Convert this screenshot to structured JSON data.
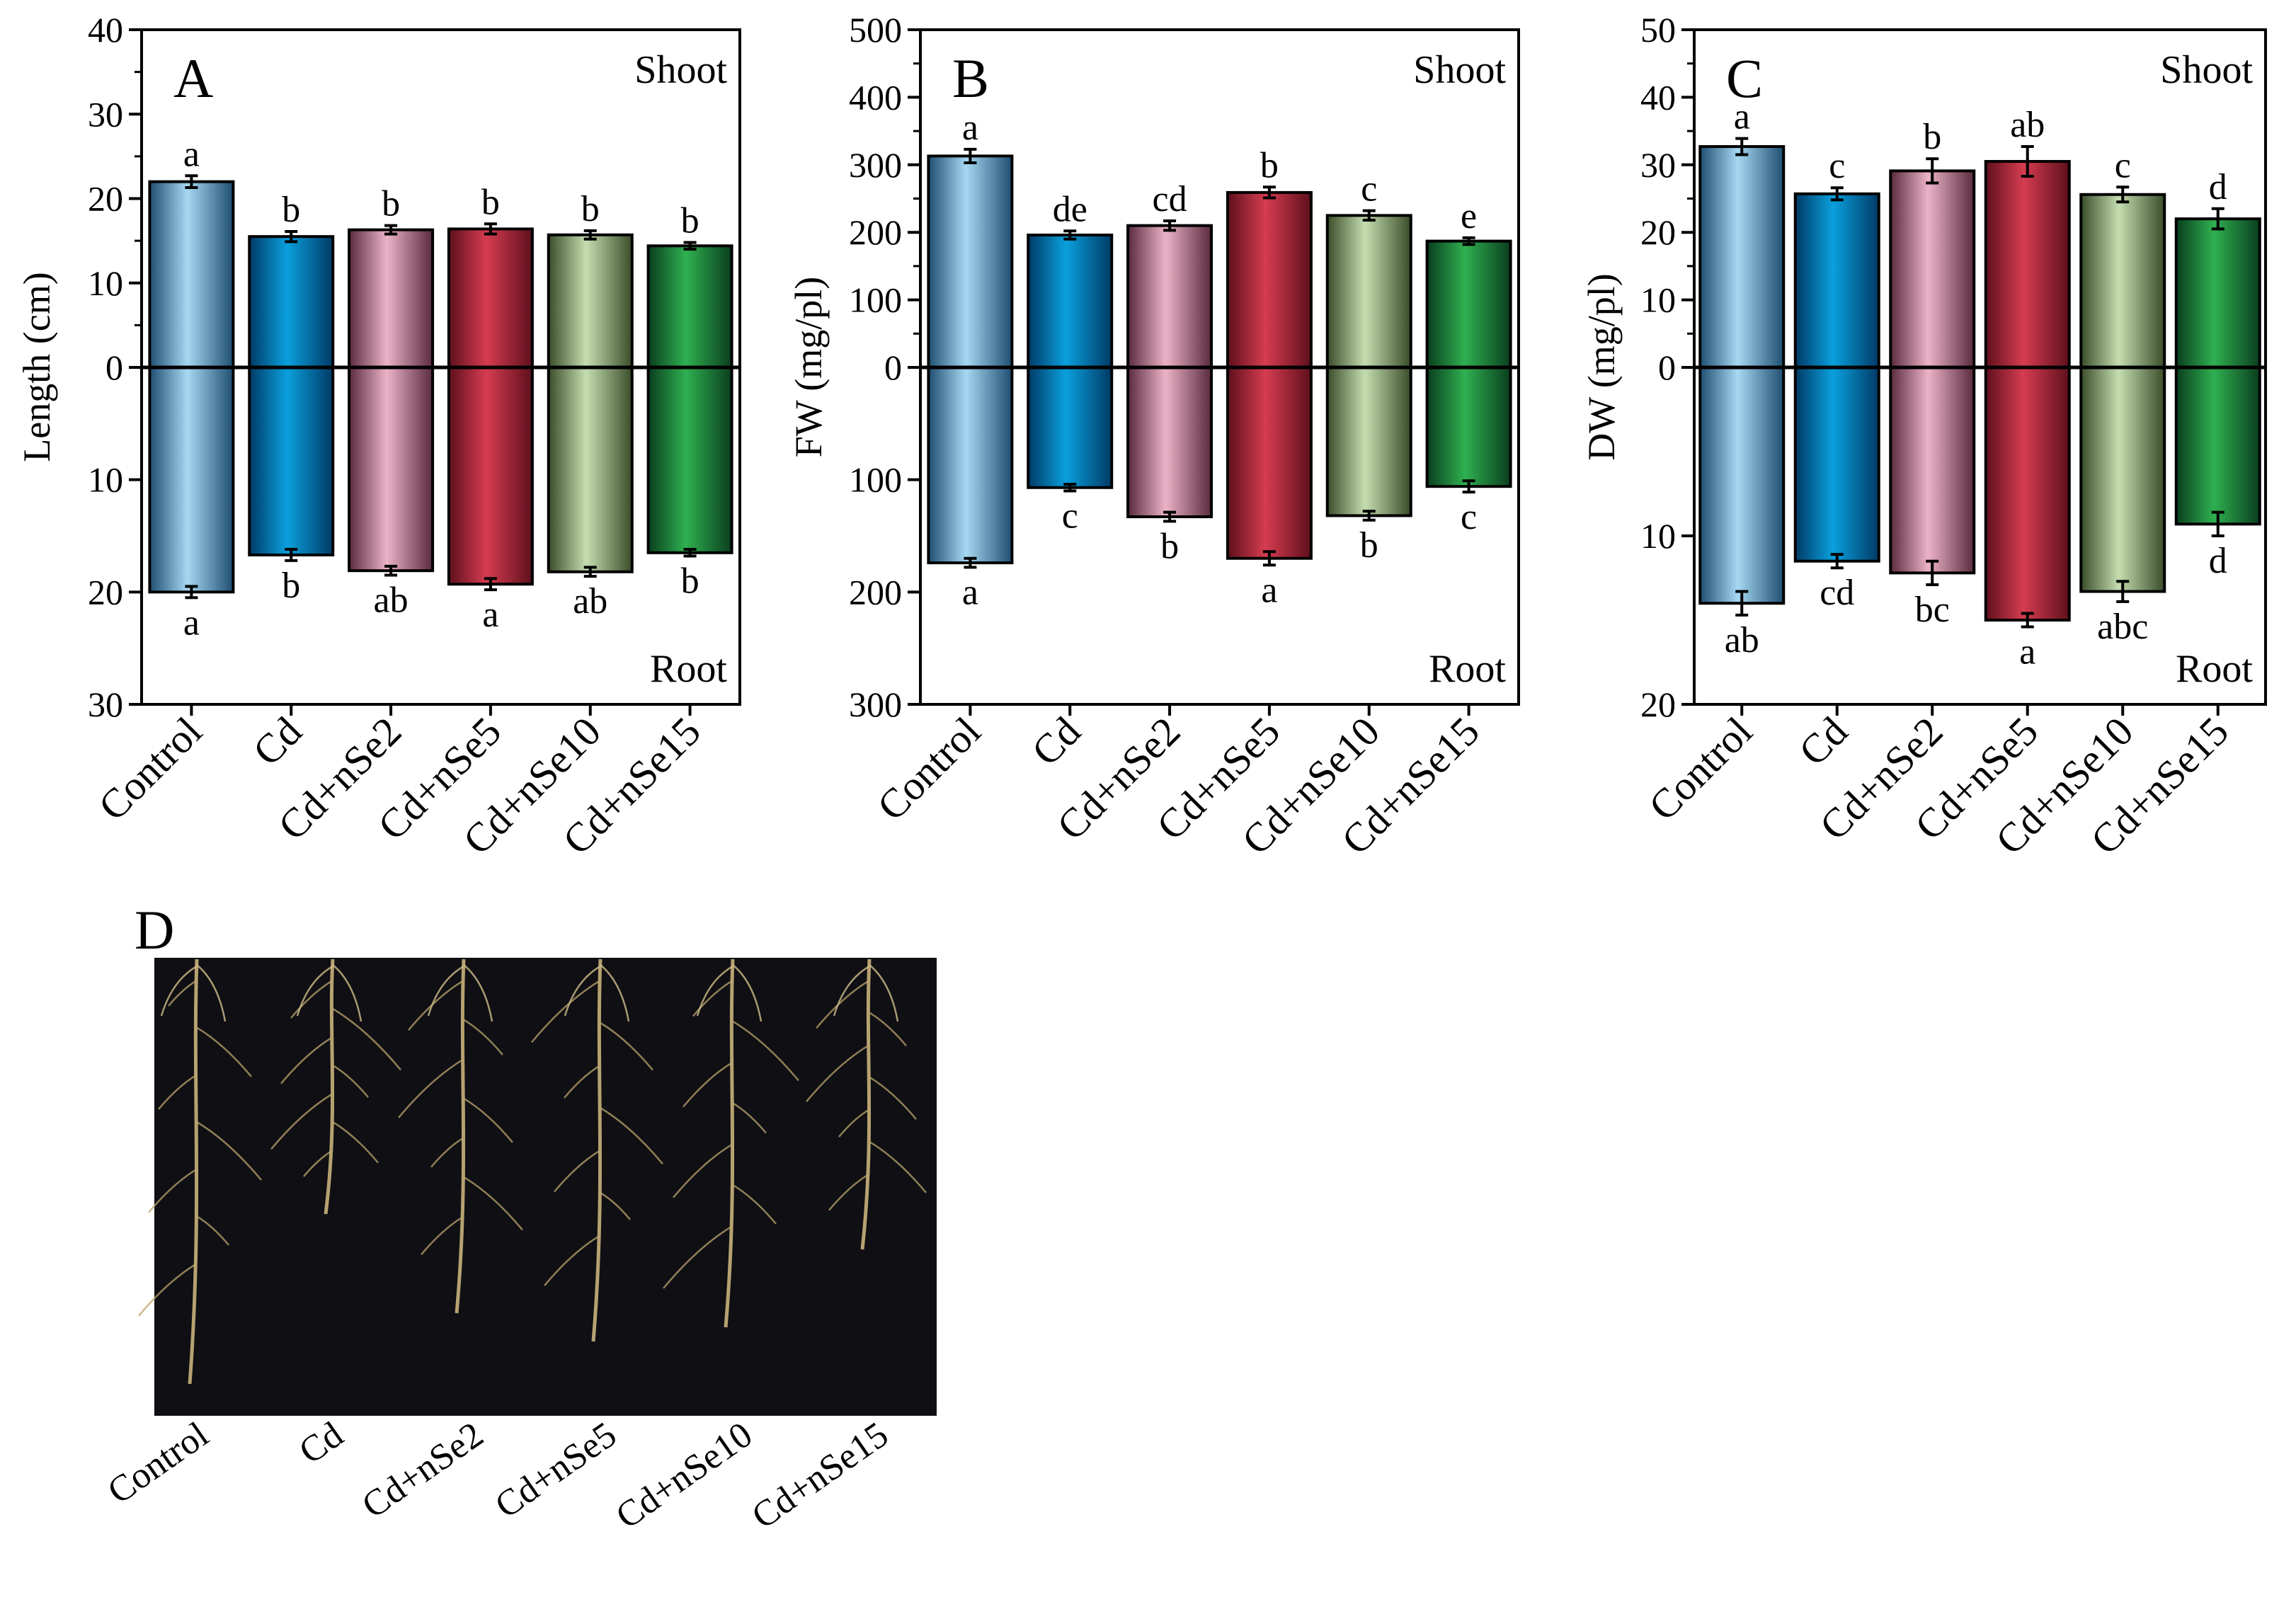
{
  "chart_data": [
    {
      "type": "bar",
      "panel_label": "A",
      "ylabel": "Length (cm)",
      "categories": [
        "Control",
        "Cd",
        "Cd+nSe2",
        "Cd+nSe5",
        "Cd+nSe10",
        "Cd+nSe15"
      ],
      "y_upper_range": [
        0,
        40
      ],
      "y_lower_range": [
        0,
        30
      ],
      "upper_ticks": [
        "40",
        "30",
        "20",
        "10",
        "0"
      ],
      "lower_ticks": [
        "10",
        "20",
        "30"
      ],
      "series": [
        {
          "name": "Shoot",
          "values": [
            22,
            15.5,
            16.3,
            16.4,
            15.7,
            14.4
          ],
          "errors": [
            0.7,
            0.6,
            0.5,
            0.6,
            0.5,
            0.4
          ],
          "letters": [
            "a",
            "b",
            "b",
            "b",
            "b",
            "b"
          ]
        },
        {
          "name": "Root",
          "values": [
            20,
            16.7,
            18.1,
            19.3,
            18.2,
            16.5
          ],
          "errors": [
            0.5,
            0.5,
            0.4,
            0.5,
            0.4,
            0.3
          ],
          "letters": [
            "a",
            "b",
            "ab",
            "a",
            "ab",
            "b"
          ]
        }
      ]
    },
    {
      "type": "bar",
      "panel_label": "B",
      "ylabel": "FW (mg/pl)",
      "categories": [
        "Control",
        "Cd",
        "Cd+nSe2",
        "Cd+nSe5",
        "Cd+nSe10",
        "Cd+nSe15"
      ],
      "y_upper_range": [
        0,
        500
      ],
      "y_lower_range": [
        0,
        300
      ],
      "upper_ticks": [
        "500",
        "400",
        "300",
        "200",
        "100",
        "0"
      ],
      "lower_ticks": [
        "100",
        "200",
        "300"
      ],
      "series": [
        {
          "name": "Shoot",
          "values": [
            313,
            196,
            210,
            259,
            225,
            187
          ],
          "errors": [
            10,
            6,
            7,
            8,
            7,
            5
          ],
          "letters": [
            "a",
            "de",
            "cd",
            "b",
            "c",
            "e"
          ]
        },
        {
          "name": "Root",
          "values": [
            174,
            107,
            133,
            170,
            132,
            106
          ],
          "errors": [
            4,
            3,
            4,
            6,
            4,
            5
          ],
          "letters": [
            "a",
            "c",
            "b",
            "a",
            "b",
            "c"
          ]
        }
      ]
    },
    {
      "type": "bar",
      "panel_label": "C",
      "ylabel": "DW (mg/pl)",
      "categories": [
        "Control",
        "Cd",
        "Cd+nSe2",
        "Cd+nSe5",
        "Cd+nSe10",
        "Cd+nSe15"
      ],
      "y_upper_range": [
        0,
        50
      ],
      "y_lower_range": [
        0,
        20
      ],
      "upper_ticks": [
        "50",
        "40",
        "30",
        "20",
        "10",
        "0"
      ],
      "lower_ticks": [
        "10",
        "20"
      ],
      "series": [
        {
          "name": "Shoot",
          "values": [
            32.7,
            25.7,
            29.1,
            30.5,
            25.6,
            22
          ],
          "errors": [
            1.2,
            0.9,
            1.8,
            2.2,
            1.1,
            1.5
          ],
          "letters": [
            "a",
            "c",
            "b",
            "ab",
            "c",
            "d"
          ]
        },
        {
          "name": "Root",
          "values": [
            14,
            11.5,
            12.2,
            15,
            13.3,
            9.3
          ],
          "errors": [
            0.7,
            0.4,
            0.7,
            0.4,
            0.6,
            0.7
          ],
          "letters": [
            "ab",
            "cd",
            "bc",
            "a",
            "abc",
            "d"
          ]
        }
      ]
    }
  ],
  "photo": {
    "panel_label": "D",
    "labels": [
      "Control",
      "Cd",
      "Cd+nSe2",
      "Cd+nSe5",
      "Cd+nSe10",
      "Cd+nSe15"
    ]
  },
  "colors": {
    "series_gradients": [
      [
        "#1f4e72",
        "#a6d8f2"
      ],
      [
        "#003a66",
        "#0aa0dd"
      ],
      [
        "#5a2a3e",
        "#ecb3c8"
      ],
      [
        "#5e0f1c",
        "#d63c50"
      ],
      [
        "#3a4d2a",
        "#c5ddb0"
      ],
      [
        "#0a3e1e",
        "#2fb050"
      ]
    ],
    "photo_background": "#0f0f14"
  }
}
